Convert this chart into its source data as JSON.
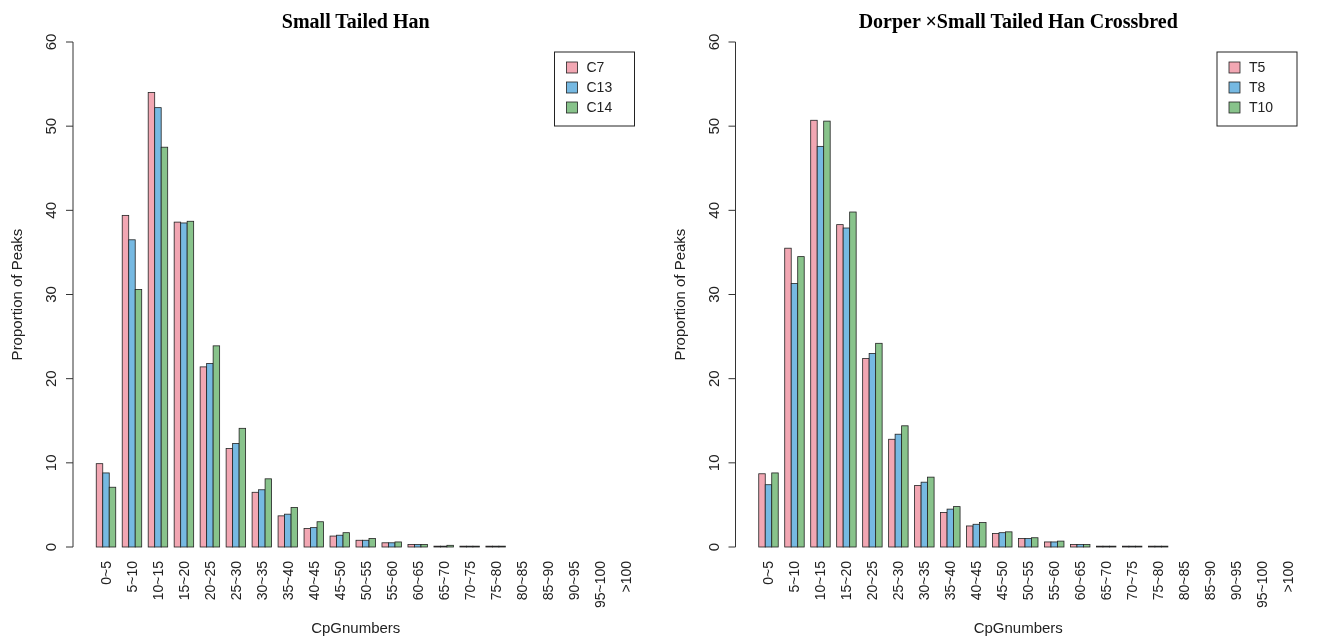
{
  "chart_data": [
    {
      "type": "bar",
      "title": "Small Tailed Han",
      "xlabel": "CpGnumbers",
      "ylabel": "Proportion of Peaks",
      "categories": [
        "0~5",
        "5~10",
        "10~15",
        "15~20",
        "20~25",
        "25~30",
        "30~35",
        "35~40",
        "40~45",
        "45~50",
        "50~55",
        "55~60",
        "60~65",
        "65~70",
        "70~75",
        "75~80",
        "80~85",
        "85~90",
        "90~95",
        "95~100",
        ">100"
      ],
      "ylim": [
        0,
        60
      ],
      "yticks": [
        0,
        10,
        20,
        30,
        40,
        50,
        60
      ],
      "legend": "top right",
      "grid": false,
      "series": [
        {
          "name": "C7",
          "color": "#f2a7b3",
          "values": [
            9.9,
            39.4,
            54.0,
            38.6,
            21.4,
            11.7,
            6.5,
            3.7,
            2.2,
            1.3,
            0.8,
            0.5,
            0.3,
            0.1,
            0.1,
            0.1,
            0,
            0,
            0,
            0,
            0
          ]
        },
        {
          "name": "C13",
          "color": "#76b9e2",
          "values": [
            8.8,
            36.5,
            52.2,
            38.5,
            21.8,
            12.3,
            6.8,
            3.9,
            2.3,
            1.4,
            0.8,
            0.5,
            0.3,
            0.1,
            0.1,
            0.1,
            0,
            0,
            0,
            0,
            0
          ]
        },
        {
          "name": "C14",
          "color": "#88c38b",
          "values": [
            7.1,
            30.6,
            47.5,
            38.7,
            23.9,
            14.1,
            8.1,
            4.7,
            3.0,
            1.7,
            1.0,
            0.6,
            0.3,
            0.2,
            0.1,
            0.1,
            0,
            0,
            0,
            0,
            0
          ]
        }
      ]
    },
    {
      "type": "bar",
      "title": "Dorper ×Small Tailed Han Crossbred",
      "xlabel": "CpGnumbers",
      "ylabel": "Proportion of Peaks",
      "categories": [
        "0~5",
        "5~10",
        "10~15",
        "15~20",
        "20~25",
        "25~30",
        "30~35",
        "35~40",
        "40~45",
        "45~50",
        "50~55",
        "55~60",
        "60~65",
        "65~70",
        "70~75",
        "75~80",
        "80~85",
        "85~90",
        "90~95",
        "95~100",
        ">100"
      ],
      "ylim": [
        0,
        60
      ],
      "yticks": [
        0,
        10,
        20,
        30,
        40,
        50,
        60
      ],
      "legend": "top right",
      "grid": false,
      "series": [
        {
          "name": "T5",
          "color": "#f2a7b3",
          "values": [
            8.7,
            35.5,
            50.7,
            38.3,
            22.4,
            12.8,
            7.3,
            4.1,
            2.5,
            1.6,
            1.0,
            0.6,
            0.3,
            0.1,
            0.1,
            0.1,
            0,
            0,
            0,
            0,
            0
          ]
        },
        {
          "name": "T8",
          "color": "#76b9e2",
          "values": [
            7.4,
            31.3,
            47.6,
            37.9,
            23.0,
            13.4,
            7.7,
            4.5,
            2.7,
            1.7,
            1.0,
            0.6,
            0.3,
            0.1,
            0.1,
            0.1,
            0,
            0,
            0,
            0,
            0
          ]
        },
        {
          "name": "T10",
          "color": "#88c38b",
          "values": [
            8.8,
            34.5,
            50.6,
            39.8,
            24.2,
            14.4,
            8.3,
            4.8,
            2.9,
            1.8,
            1.1,
            0.7,
            0.3,
            0.1,
            0.1,
            0.1,
            0,
            0,
            0,
            0,
            0
          ]
        }
      ]
    }
  ]
}
